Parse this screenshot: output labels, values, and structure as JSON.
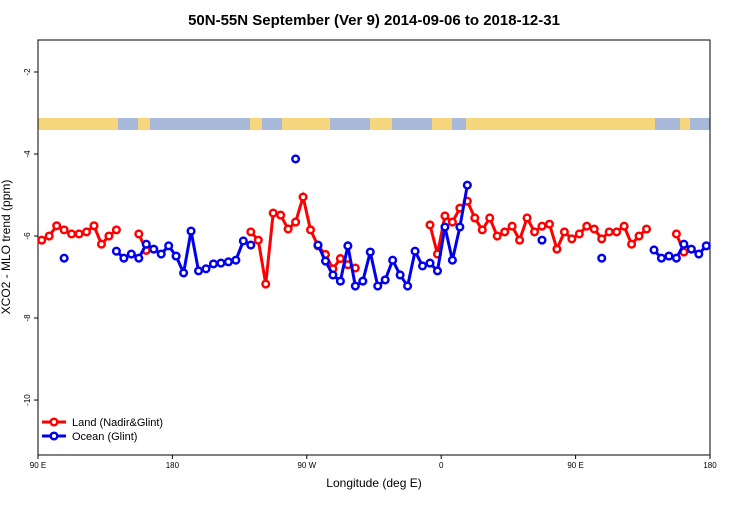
{
  "chart_data": {
    "type": "line",
    "title": "50N-55N September (Ver 9)   2014-09-06 to 2018-12-31",
    "x_label": "Longitude (deg E)",
    "y_label": "XCO2 - MLO trend (ppm)",
    "xlim": [
      90,
      540
    ],
    "ylim": [
      -11.34,
      -1.22
    ],
    "xticks": [
      {
        "value": 90,
        "label": "90 E"
      },
      {
        "value": 180,
        "label": "180"
      },
      {
        "value": 270,
        "label": "90 W"
      },
      {
        "value": 360,
        "label": "0"
      },
      {
        "value": 450,
        "label": "90 E"
      },
      {
        "value": 540,
        "label": "180"
      }
    ],
    "yticks": [
      -2,
      -4,
      -6,
      -8,
      -10
    ],
    "legend": "lower left",
    "x": [
      92.5,
      97.5,
      102.5,
      107.5,
      112.5,
      117.5,
      122.5,
      127.5,
      132.5,
      137.5,
      142.5,
      147.5,
      152.5,
      157.5,
      162.5,
      167.5,
      172.5,
      177.5,
      182.5,
      187.5,
      192.5,
      197.5,
      202.5,
      207.5,
      212.5,
      217.5,
      222.5,
      227.5,
      232.5,
      237.5,
      242.5,
      247.5,
      252.5,
      257.5,
      262.5,
      267.5,
      272.5,
      277.5,
      282.5,
      287.5,
      292.5,
      297.5,
      302.5,
      307.5,
      312.5,
      317.5,
      322.5,
      327.5,
      332.5,
      337.5,
      342.5,
      347.5,
      352.5,
      357.5,
      362.5,
      367.5,
      372.5,
      377.5,
      382.5,
      387.5,
      392.5,
      397.5,
      402.5,
      407.5,
      412.5,
      417.5,
      422.5,
      427.5,
      432.5,
      437.5,
      442.5,
      447.5,
      452.5,
      457.5,
      462.5,
      467.5,
      472.5,
      477.5,
      482.5,
      487.5,
      492.5,
      497.5,
      502.5,
      507.5,
      512.5,
      517.5,
      522.5,
      527.5,
      532.5,
      537.5
    ],
    "series": [
      {
        "name": "Land (Nadir&Glint)",
        "color": "#ff0000",
        "values": [
          -6.1,
          -6.0,
          -5.75,
          -5.85,
          -5.95,
          -5.95,
          -5.9,
          -5.75,
          -6.2,
          -6.0,
          -5.85,
          null,
          null,
          -5.95,
          -6.35,
          null,
          null,
          null,
          null,
          null,
          null,
          null,
          null,
          null,
          null,
          null,
          null,
          null,
          -5.9,
          -6.1,
          -7.17,
          -5.44,
          -5.49,
          -5.83,
          -5.66,
          -5.05,
          -5.85,
          -6.24,
          -6.45,
          -6.8,
          -6.55,
          -6.7,
          -6.78,
          null,
          null,
          null,
          null,
          null,
          null,
          null,
          null,
          null,
          -5.73,
          -6.44,
          -5.51,
          -5.66,
          -5.32,
          -5.15,
          -5.56,
          -5.85,
          -5.56,
          -6.0,
          -5.9,
          -5.76,
          -6.1,
          -5.56,
          -5.9,
          -5.76,
          -5.71,
          -6.32,
          -5.9,
          -6.07,
          -5.95,
          -5.76,
          -5.83,
          -6.07,
          -5.9,
          -5.9,
          -5.76,
          -6.2,
          -6.0,
          -5.83,
          null,
          null,
          null,
          -5.95,
          -6.39,
          null,
          null,
          null
        ]
      },
      {
        "name": "Ocean (Glint)",
        "color": "#0000ee",
        "values": [
          null,
          null,
          null,
          -6.54,
          null,
          null,
          null,
          null,
          null,
          null,
          -6.37,
          -6.54,
          -6.44,
          -6.54,
          -6.2,
          -6.32,
          -6.44,
          -6.24,
          -6.49,
          -6.9,
          -5.88,
          -6.85,
          -6.8,
          -6.68,
          -6.66,
          -6.63,
          -6.59,
          -6.12,
          -6.22,
          null,
          null,
          null,
          null,
          null,
          -4.12,
          null,
          null,
          -6.22,
          -6.61,
          -6.95,
          -7.1,
          -6.24,
          -7.22,
          -7.1,
          -6.39,
          -7.22,
          -7.07,
          -6.59,
          -6.95,
          -7.22,
          -6.37,
          -6.73,
          -6.66,
          -6.85,
          -5.78,
          -6.59,
          -5.78,
          -4.76,
          null,
          null,
          null,
          null,
          null,
          null,
          null,
          null,
          null,
          -6.1,
          null,
          null,
          null,
          null,
          null,
          null,
          null,
          -6.54,
          null,
          null,
          null,
          null,
          null,
          null,
          -6.34,
          -6.54,
          -6.49,
          -6.54,
          -6.2,
          -6.32,
          -6.44,
          -6.24
        ]
      }
    ]
  }
}
